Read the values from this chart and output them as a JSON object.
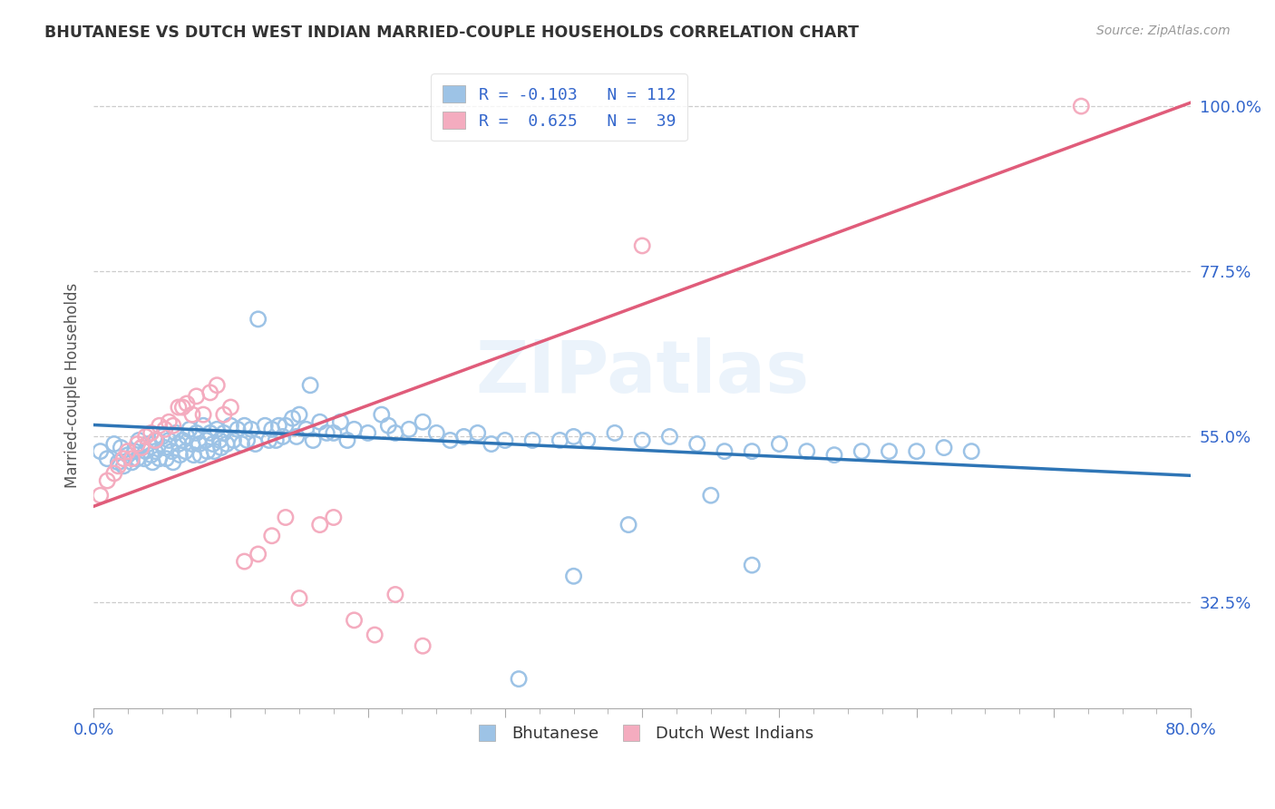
{
  "title": "BHUTANESE VS DUTCH WEST INDIAN MARRIED-COUPLE HOUSEHOLDS CORRELATION CHART",
  "source": "Source: ZipAtlas.com",
  "ylabel": "Married-couple Households",
  "ytick_labels": [
    "100.0%",
    "77.5%",
    "55.0%",
    "32.5%"
  ],
  "ytick_values": [
    1.0,
    0.775,
    0.55,
    0.325
  ],
  "xlim": [
    0.0,
    0.8
  ],
  "ylim": [
    0.18,
    1.06
  ],
  "legend_blue_label": "R = -0.103   N = 112",
  "legend_pink_label": "R =  0.625   N =  39",
  "blue_color": "#9DC3E6",
  "pink_color": "#F4ACBF",
  "blue_line_color": "#2E75B6",
  "pink_line_color": "#E05C7A",
  "watermark": "ZIPatlas",
  "blue_scatter_x": [
    0.005,
    0.01,
    0.015,
    0.018,
    0.02,
    0.022,
    0.025,
    0.028,
    0.03,
    0.032,
    0.033,
    0.035,
    0.037,
    0.038,
    0.04,
    0.042,
    0.043,
    0.045,
    0.046,
    0.048,
    0.05,
    0.052,
    0.053,
    0.055,
    0.057,
    0.058,
    0.06,
    0.062,
    0.063,
    0.065,
    0.067,
    0.068,
    0.07,
    0.072,
    0.073,
    0.075,
    0.077,
    0.078,
    0.08,
    0.082,
    0.083,
    0.085,
    0.087,
    0.088,
    0.09,
    0.092,
    0.093,
    0.095,
    0.097,
    0.1,
    0.102,
    0.105,
    0.108,
    0.11,
    0.112,
    0.115,
    0.118,
    0.12,
    0.125,
    0.128,
    0.13,
    0.133,
    0.135,
    0.138,
    0.14,
    0.145,
    0.148,
    0.15,
    0.155,
    0.158,
    0.16,
    0.165,
    0.17,
    0.175,
    0.18,
    0.185,
    0.19,
    0.2,
    0.21,
    0.215,
    0.22,
    0.23,
    0.24,
    0.25,
    0.26,
    0.27,
    0.28,
    0.29,
    0.3,
    0.32,
    0.34,
    0.35,
    0.36,
    0.38,
    0.4,
    0.42,
    0.44,
    0.46,
    0.48,
    0.5,
    0.52,
    0.54,
    0.56,
    0.58,
    0.6,
    0.62,
    0.64,
    0.48,
    0.39,
    0.45,
    0.35,
    0.31
  ],
  "blue_scatter_y": [
    0.53,
    0.52,
    0.54,
    0.515,
    0.535,
    0.51,
    0.525,
    0.515,
    0.53,
    0.52,
    0.545,
    0.535,
    0.52,
    0.53,
    0.54,
    0.525,
    0.515,
    0.53,
    0.545,
    0.52,
    0.55,
    0.535,
    0.52,
    0.545,
    0.53,
    0.515,
    0.555,
    0.54,
    0.525,
    0.545,
    0.53,
    0.55,
    0.56,
    0.54,
    0.525,
    0.555,
    0.54,
    0.525,
    0.565,
    0.545,
    0.53,
    0.555,
    0.54,
    0.53,
    0.56,
    0.545,
    0.535,
    0.555,
    0.54,
    0.565,
    0.545,
    0.56,
    0.54,
    0.565,
    0.545,
    0.56,
    0.54,
    0.71,
    0.565,
    0.545,
    0.56,
    0.545,
    0.565,
    0.55,
    0.565,
    0.575,
    0.55,
    0.58,
    0.56,
    0.62,
    0.545,
    0.57,
    0.555,
    0.555,
    0.57,
    0.545,
    0.56,
    0.555,
    0.58,
    0.565,
    0.555,
    0.56,
    0.57,
    0.555,
    0.545,
    0.55,
    0.555,
    0.54,
    0.545,
    0.545,
    0.545,
    0.55,
    0.545,
    0.555,
    0.545,
    0.55,
    0.54,
    0.53,
    0.53,
    0.54,
    0.53,
    0.525,
    0.53,
    0.53,
    0.53,
    0.535,
    0.53,
    0.375,
    0.43,
    0.47,
    0.36,
    0.22
  ],
  "pink_scatter_x": [
    0.005,
    0.01,
    0.015,
    0.018,
    0.022,
    0.025,
    0.028,
    0.032,
    0.035,
    0.038,
    0.042,
    0.045,
    0.048,
    0.052,
    0.055,
    0.058,
    0.062,
    0.065,
    0.068,
    0.072,
    0.075,
    0.08,
    0.085,
    0.09,
    0.095,
    0.1,
    0.11,
    0.12,
    0.13,
    0.14,
    0.15,
    0.165,
    0.175,
    0.19,
    0.205,
    0.22,
    0.24,
    0.4,
    0.72
  ],
  "pink_scatter_y": [
    0.47,
    0.49,
    0.5,
    0.51,
    0.52,
    0.53,
    0.52,
    0.54,
    0.535,
    0.55,
    0.555,
    0.545,
    0.565,
    0.56,
    0.57,
    0.565,
    0.59,
    0.59,
    0.595,
    0.58,
    0.605,
    0.58,
    0.61,
    0.62,
    0.58,
    0.59,
    0.38,
    0.39,
    0.415,
    0.44,
    0.33,
    0.43,
    0.44,
    0.3,
    0.28,
    0.335,
    0.265,
    0.81,
    1.0
  ],
  "blue_line_x": [
    0.0,
    0.8
  ],
  "blue_line_y": [
    0.566,
    0.497
  ],
  "pink_line_x": [
    0.0,
    0.8
  ],
  "pink_line_y": [
    0.455,
    1.005
  ]
}
